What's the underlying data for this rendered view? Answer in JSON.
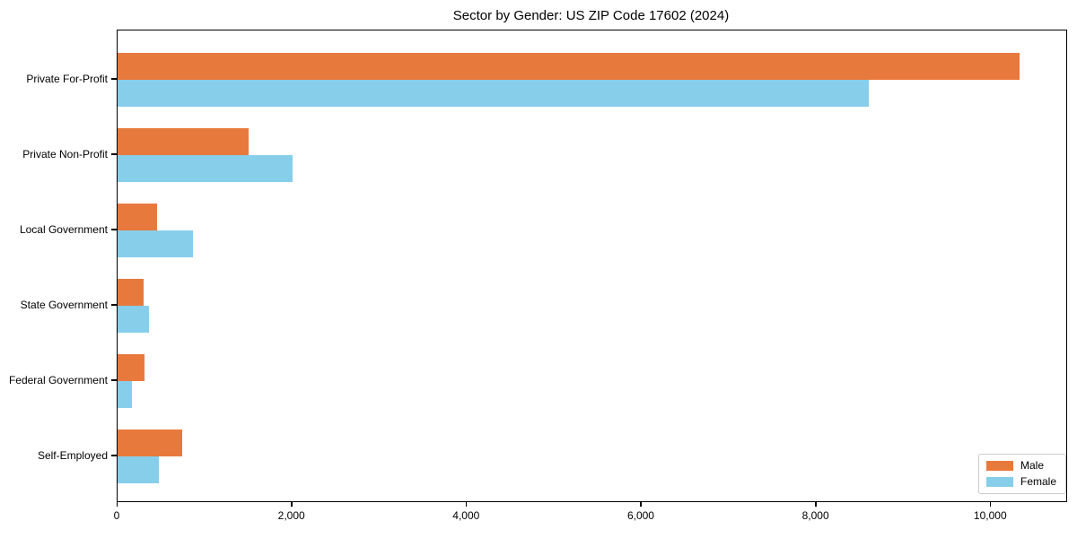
{
  "figure": {
    "background": "#ffffff"
  },
  "chart_data": {
    "type": "bar",
    "orientation": "horizontal",
    "title": "Sector by Gender: US ZIP Code 17602 (2024)",
    "categories": [
      "Private For-Profit",
      "Private Non-Profit",
      "Local Government",
      "State Government",
      "Federal Government",
      "Self-Employed"
    ],
    "series": [
      {
        "name": "Male",
        "color": "#e8793d",
        "values": [
          10330,
          1500,
          450,
          300,
          310,
          740
        ]
      },
      {
        "name": "Female",
        "color": "#87ceeb",
        "values": [
          8600,
          2000,
          860,
          360,
          160,
          470
        ]
      }
    ],
    "xlabel": "",
    "ylabel": "",
    "xlim": [
      0,
      10860
    ],
    "xticks": {
      "values": [
        0,
        2000,
        4000,
        6000,
        8000,
        10000
      ],
      "labels": [
        "0",
        "2,000",
        "4,000",
        "6,000",
        "8,000",
        "10,000"
      ]
    },
    "grid": false,
    "legend": {
      "position": "lower right",
      "entries": [
        "Male",
        "Female"
      ]
    }
  }
}
